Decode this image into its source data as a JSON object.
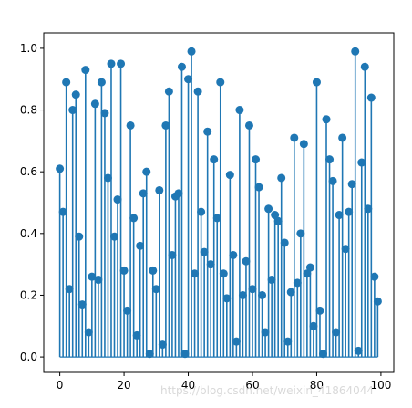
{
  "chart_data": {
    "type": "stem",
    "title": "",
    "xlabel": "",
    "ylabel": "",
    "xlim": [
      -5,
      104
    ],
    "ylim": [
      -0.05,
      1.05
    ],
    "xticks": [
      0,
      20,
      40,
      60,
      80,
      100
    ],
    "yticks": [
      0.0,
      0.2,
      0.4,
      0.6,
      0.8,
      1.0
    ],
    "xtick_labels": [
      "0",
      "20",
      "40",
      "60",
      "80",
      "100"
    ],
    "ytick_labels": [
      "0.0",
      "0.2",
      "0.4",
      "0.6",
      "0.8",
      "1.0"
    ],
    "grid": false,
    "baseline": 0,
    "color": "#1f77b4",
    "series": [
      {
        "x": [
          0,
          1,
          2,
          3,
          4,
          5,
          6,
          7,
          8,
          9,
          10,
          11,
          12,
          13,
          14,
          15,
          16,
          17,
          18,
          19,
          20,
          21,
          22,
          23,
          24,
          25,
          26,
          27,
          28,
          29,
          30,
          31,
          32,
          33,
          34,
          35,
          36,
          37,
          38,
          39,
          40,
          41,
          42,
          43,
          44,
          45,
          46,
          47,
          48,
          49,
          50,
          51,
          52,
          53,
          54,
          55,
          56,
          57,
          58,
          59,
          60,
          61,
          62,
          63,
          64,
          65,
          66,
          67,
          68,
          69,
          70,
          71,
          72,
          73,
          74,
          75,
          76,
          77,
          78,
          79,
          80,
          81,
          82,
          83,
          84,
          85,
          86,
          87,
          88,
          89,
          90,
          91,
          92,
          93,
          94,
          95,
          96,
          97,
          98,
          99
        ],
        "values": [
          0.61,
          0.47,
          0.89,
          0.22,
          0.8,
          0.85,
          0.39,
          0.17,
          0.93,
          0.08,
          0.26,
          0.82,
          0.25,
          0.89,
          0.79,
          0.58,
          0.95,
          0.39,
          0.51,
          0.95,
          0.28,
          0.15,
          0.75,
          0.45,
          0.07,
          0.36,
          0.53,
          0.6,
          0.01,
          0.28,
          0.22,
          0.54,
          0.04,
          0.75,
          0.86,
          0.33,
          0.52,
          0.53,
          0.94,
          0.01,
          0.9,
          0.99,
          0.27,
          0.86,
          0.47,
          0.34,
          0.73,
          0.3,
          0.64,
          0.45,
          0.89,
          0.27,
          0.19,
          0.59,
          0.33,
          0.05,
          0.8,
          0.2,
          0.31,
          0.75,
          0.22,
          0.64,
          0.55,
          0.2,
          0.08,
          0.48,
          0.25,
          0.46,
          0.44,
          0.58,
          0.37,
          0.05,
          0.21,
          0.71,
          0.24,
          0.4,
          0.69,
          0.27,
          0.29,
          0.1,
          0.89,
          0.15,
          0.01,
          0.77,
          0.64,
          0.57,
          0.08,
          0.46,
          0.71,
          0.35,
          0.47,
          0.56,
          0.99,
          0.02,
          0.63,
          0.94,
          0.48,
          0.84,
          0.26,
          0.18
        ]
      }
    ]
  },
  "watermark": "https://blog.csdn.net/weixin_41864044"
}
